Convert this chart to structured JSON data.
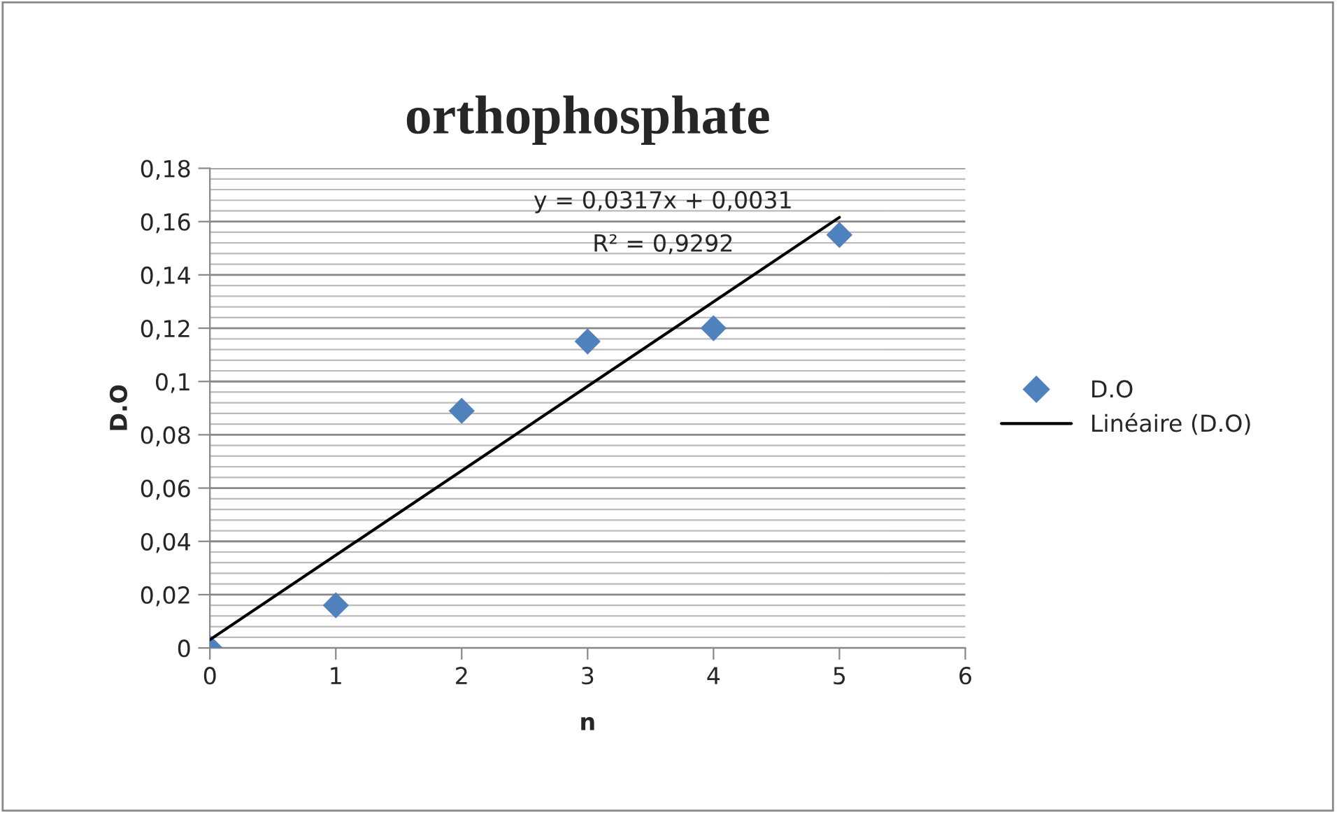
{
  "chart_data": {
    "type": "scatter",
    "title": "orthophosphate",
    "xlabel": "n",
    "ylabel": "D.O",
    "x": [
      0,
      1,
      2,
      3,
      4,
      5
    ],
    "series": [
      {
        "name": "D.O",
        "color": "#4f81bd",
        "marker": "diamond",
        "values": [
          0,
          0.016,
          0.089,
          0.115,
          0.12,
          0.155
        ]
      },
      {
        "name": "Linéaire (D.O)",
        "type": "line",
        "color": "#000000",
        "line_style": "solid",
        "marker": "none",
        "x": [
          0,
          5
        ],
        "values": [
          0.0031,
          0.1616
        ]
      }
    ],
    "annotations": [
      "y = 0,0317x + 0,0031",
      "R² = 0,9292"
    ],
    "xlim": [
      0,
      6
    ],
    "xticks": [
      0,
      1,
      2,
      3,
      4,
      5,
      6
    ],
    "ylim": [
      0,
      0.18
    ],
    "yticks": [
      {
        "value": 0,
        "label": "0"
      },
      {
        "value": 0.004,
        "label": null
      },
      {
        "value": 0.008,
        "label": null
      },
      {
        "value": 0.012,
        "label": null
      },
      {
        "value": 0.016,
        "label": null
      },
      {
        "value": 0.02,
        "label": "0,02"
      },
      {
        "value": 0.024,
        "label": null
      },
      {
        "value": 0.028,
        "label": null
      },
      {
        "value": 0.032,
        "label": null
      },
      {
        "value": 0.036,
        "label": null
      },
      {
        "value": 0.04,
        "label": "0,04"
      },
      {
        "value": 0.044,
        "label": null
      },
      {
        "value": 0.048,
        "label": null
      },
      {
        "value": 0.052,
        "label": null
      },
      {
        "value": 0.056,
        "label": null
      },
      {
        "value": 0.06,
        "label": "0,06"
      },
      {
        "value": 0.064,
        "label": null
      },
      {
        "value": 0.068,
        "label": null
      },
      {
        "value": 0.072,
        "label": null
      },
      {
        "value": 0.076,
        "label": null
      },
      {
        "value": 0.08,
        "label": "0,08"
      },
      {
        "value": 0.084,
        "label": null
      },
      {
        "value": 0.088,
        "label": null
      },
      {
        "value": 0.092,
        "label": null
      },
      {
        "value": 0.096,
        "label": null
      },
      {
        "value": 0.1,
        "label": "0,1"
      },
      {
        "value": 0.104,
        "label": null
      },
      {
        "value": 0.108,
        "label": null
      },
      {
        "value": 0.112,
        "label": null
      },
      {
        "value": 0.116,
        "label": null
      },
      {
        "value": 0.12,
        "label": "0,12"
      },
      {
        "value": 0.124,
        "label": null
      },
      {
        "value": 0.128,
        "label": null
      },
      {
        "value": 0.132,
        "label": null
      },
      {
        "value": 0.136,
        "label": null
      },
      {
        "value": 0.14,
        "label": "0,14"
      },
      {
        "value": 0.144,
        "label": null
      },
      {
        "value": 0.148,
        "label": null
      },
      {
        "value": 0.152,
        "label": null
      },
      {
        "value": 0.156,
        "label": null
      },
      {
        "value": 0.16,
        "label": "0,16"
      },
      {
        "value": 0.164,
        "label": null
      },
      {
        "value": 0.168,
        "label": null
      },
      {
        "value": 0.172,
        "label": null
      },
      {
        "value": 0.176,
        "label": null
      },
      {
        "value": 0.18,
        "label": "0,18"
      }
    ],
    "grid": "y",
    "legend": "right"
  }
}
